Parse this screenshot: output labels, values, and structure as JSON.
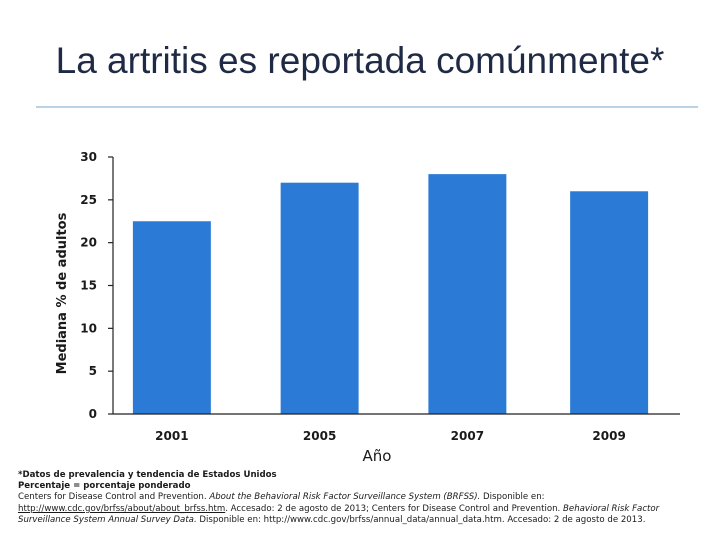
{
  "title": "La artritis es reportada comúnmente*",
  "colors": {
    "bar": "#2b7bd6",
    "axis": "#222222"
  },
  "chart_data": {
    "type": "bar",
    "categories": [
      "2001",
      "2005",
      "2007",
      "2009"
    ],
    "values": [
      22.5,
      27,
      28,
      26
    ],
    "ylabel": "Mediana % de adultos",
    "xlabel": "Año",
    "ylim": [
      0,
      30
    ],
    "yticks": [
      "0",
      "5",
      "10",
      "15",
      "20",
      "25",
      "30"
    ],
    "grid": false
  },
  "footnotes": {
    "line1": "*Datos de prevalencia y tendencia de Estados Unidos",
    "line2": "Percentaje = porcentaje ponderado",
    "line3a": "Centers for Disease Control and Prevention. ",
    "line3b": "About the Behavioral Risk Factor Surveillance System (BRFSS).",
    "line3c": " Disponible en:",
    "line4a": "http://www.cdc.gov/brfss/about/about_brfss.htm",
    "line4b": ". Accesado: 2 de agosto de 2013; Centers for Disease Control and Prevention. ",
    "line4c": "Behavioral Risk Factor",
    "line5a": "Surveillance System Annual Survey Data.",
    "line5b": " Disponible en: http://www.cdc.gov/brfss/annual_data/annual_data.htm. Accesado: 2 de agosto de 2013."
  }
}
